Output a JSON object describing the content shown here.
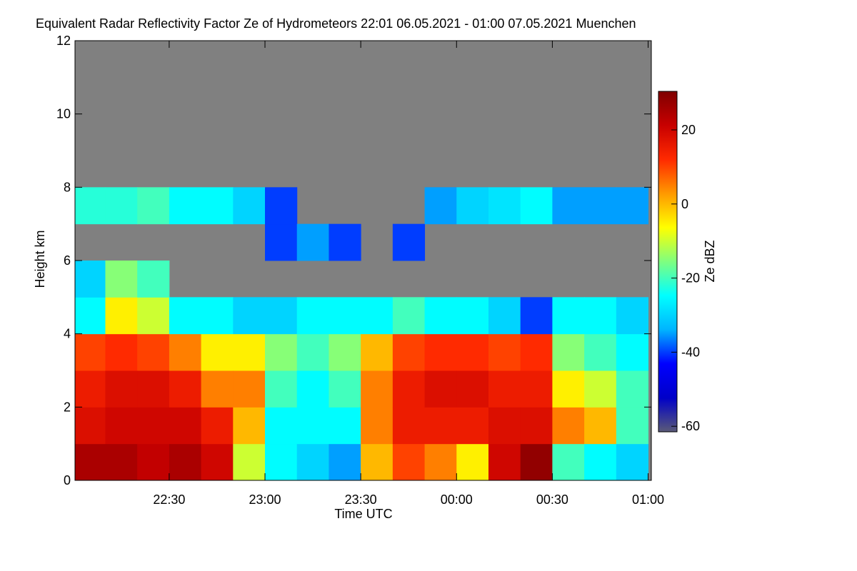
{
  "chart_data": {
    "type": "heatmap",
    "title": "Equivalent Radar Reflectivity Factor Ze of Hydrometeors   22:01 06.05.2021 - 01:00 07.05.2021 Muenchen",
    "x_label": "Time UTC",
    "y_label": "Height km",
    "colorbar_label": "Ze dBZ",
    "xlim": [
      0.5,
      181
    ],
    "xticks": [
      {
        "value": 30,
        "label": "22:30"
      },
      {
        "value": 60,
        "label": "23:00"
      },
      {
        "value": 90,
        "label": "23:30"
      },
      {
        "value": 120,
        "label": "00:00"
      },
      {
        "value": 150,
        "label": "00:30"
      },
      {
        "value": 180,
        "label": "01:00"
      }
    ],
    "ylim": [
      0,
      12
    ],
    "yticks": [
      0,
      2,
      4,
      6,
      8,
      10,
      12
    ],
    "zlim": [
      -61.5,
      30.4
    ],
    "zticks": [
      -60,
      -40,
      -20,
      0,
      20
    ],
    "colormap": [
      "#5a5a78",
      "#0000c8",
      "#0000ff",
      "#00b4ff",
      "#00ffff",
      "#7fff7f",
      "#ffff00",
      "#ff9900",
      "#ff2a00",
      "#c80000",
      "#7f0000"
    ],
    "missing_color": "#808080",
    "x": [
      5,
      15,
      25,
      35,
      45,
      55,
      65,
      75,
      85,
      95,
      105,
      115,
      125,
      135,
      145,
      155,
      165,
      175
    ],
    "y": [
      0.5,
      1.5,
      2.5,
      3.5,
      4.5,
      5.5,
      6.5,
      7.5,
      8.5,
      9.5,
      10.5,
      11.5
    ],
    "z": [
      [
        25,
        18,
        15,
        10,
        -25,
        -30,
        null,
        -22,
        null,
        null,
        null,
        null
      ],
      [
        25,
        20,
        18,
        12,
        -5,
        -15,
        null,
        -22,
        null,
        null,
        null,
        null
      ],
      [
        22,
        20,
        18,
        10,
        -10,
        -20,
        null,
        -20,
        null,
        null,
        null,
        null
      ],
      [
        25,
        20,
        15,
        5,
        -25,
        null,
        null,
        -25,
        null,
        null,
        null,
        null
      ],
      [
        20,
        15,
        5,
        -5,
        -25,
        null,
        null,
        -25,
        null,
        null,
        null,
        null
      ],
      [
        -10,
        0,
        5,
        -5,
        -30,
        null,
        null,
        -30,
        null,
        null,
        null,
        null
      ],
      [
        -25,
        -25,
        -20,
        -15,
        -30,
        null,
        -40,
        -40,
        null,
        null,
        null,
        null
      ],
      [
        -30,
        -25,
        -25,
        -20,
        -25,
        null,
        -35,
        null,
        null,
        null,
        null,
        null
      ],
      [
        -35,
        -25,
        -20,
        -15,
        -25,
        null,
        -40,
        null,
        null,
        null,
        null,
        null
      ],
      [
        0,
        5,
        5,
        0,
        -25,
        null,
        null,
        null,
        null,
        null,
        null,
        null
      ],
      [
        10,
        15,
        15,
        10,
        -20,
        null,
        -40,
        null,
        null,
        null,
        null,
        null
      ],
      [
        5,
        15,
        18,
        12,
        -25,
        null,
        null,
        -35,
        null,
        null,
        null,
        null
      ],
      [
        -5,
        15,
        18,
        12,
        -25,
        null,
        null,
        -30,
        null,
        null,
        null,
        null
      ],
      [
        20,
        18,
        15,
        10,
        -30,
        null,
        null,
        -28,
        null,
        null,
        null,
        null
      ],
      [
        28,
        18,
        15,
        12,
        -40,
        null,
        null,
        -25,
        null,
        null,
        null,
        null
      ],
      [
        -20,
        5,
        -5,
        -15,
        -25,
        null,
        null,
        -35,
        null,
        null,
        null,
        null
      ],
      [
        -25,
        0,
        -10,
        -20,
        -25,
        null,
        null,
        -35,
        null,
        null,
        null,
        null
      ],
      [
        -30,
        -20,
        -20,
        -25,
        -30,
        null,
        null,
        -35,
        null,
        null,
        null,
        null
      ]
    ]
  }
}
